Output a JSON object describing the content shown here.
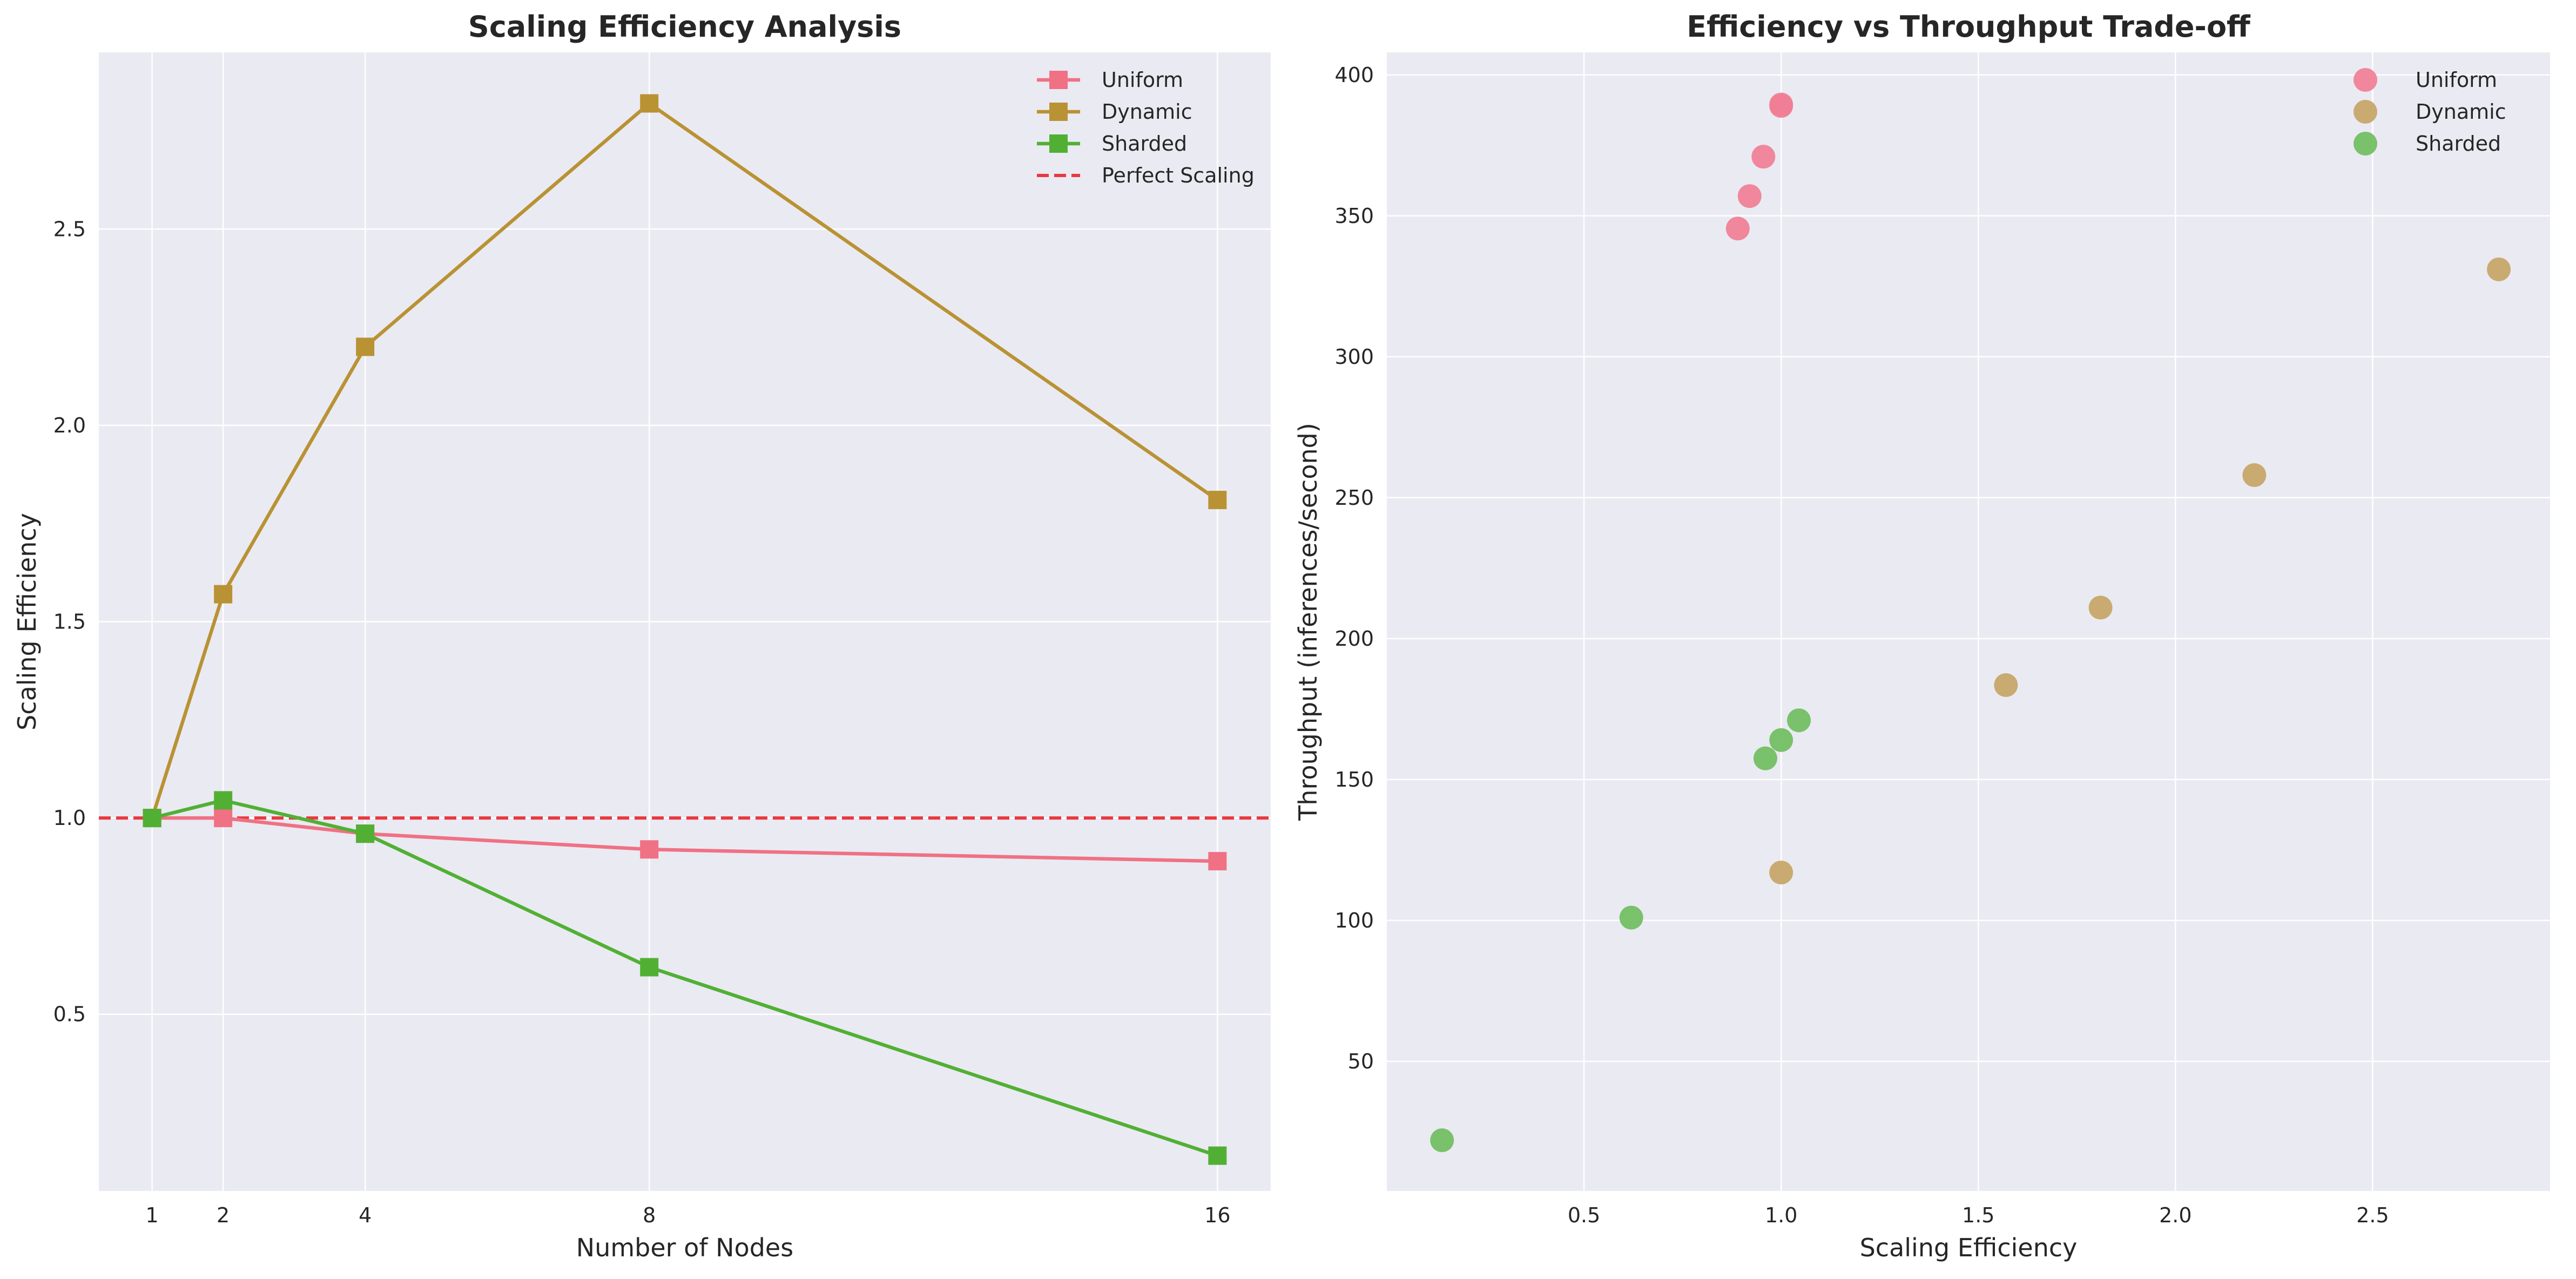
{
  "chart_data": [
    {
      "type": "line",
      "title": "Scaling Efficiency Analysis",
      "xlabel": "Number of Nodes",
      "ylabel": "Scaling Efficiency",
      "x": [
        1,
        2,
        4,
        8,
        16
      ],
      "xticks": [
        1,
        2,
        4,
        8,
        16
      ],
      "yticks": [
        0.5,
        1.0,
        1.5,
        2.0,
        2.5
      ],
      "xlim": [
        0.25,
        16.75
      ],
      "ylim": [
        0.05,
        2.95
      ],
      "grid": true,
      "legend_position": "top-right",
      "series": [
        {
          "name": "Uniform",
          "color": "#f07184",
          "marker": "square",
          "values": [
            1.0,
            1.0,
            0.96,
            0.92,
            0.89
          ]
        },
        {
          "name": "Dynamic",
          "color": "#b99234",
          "marker": "square",
          "values": [
            1.0,
            1.57,
            2.2,
            2.82,
            1.81
          ]
        },
        {
          "name": "Sharded",
          "color": "#51b034",
          "marker": "square",
          "values": [
            1.0,
            1.045,
            0.96,
            0.62,
            0.14
          ]
        }
      ],
      "reference_line": {
        "name": "Perfect Scaling",
        "y": 1.0,
        "color": "#e8393f",
        "style": "dashed"
      }
    },
    {
      "type": "scatter",
      "title": "Efficiency vs Throughput Trade-off",
      "xlabel": "Scaling Efficiency",
      "ylabel": "Throughput (inferences/second)",
      "xticks": [
        0.5,
        1.0,
        1.5,
        2.0,
        2.5
      ],
      "yticks": [
        50,
        100,
        150,
        200,
        250,
        300,
        350,
        400
      ],
      "xlim": [
        0.0,
        2.95
      ],
      "ylim": [
        4,
        408
      ],
      "grid": true,
      "legend_position": "top-right",
      "series": [
        {
          "name": "Uniform",
          "color": "#f07e95",
          "points": [
            [
              1.0,
              389
            ],
            [
              1.0,
              389.5
            ],
            [
              0.955,
              371
            ],
            [
              0.92,
              357
            ],
            [
              0.89,
              345.5
            ]
          ]
        },
        {
          "name": "Dynamic",
          "color": "#c5a466",
          "points": [
            [
              1.0,
              117
            ],
            [
              1.57,
              183.5
            ],
            [
              2.2,
              258
            ],
            [
              2.82,
              331
            ],
            [
              1.81,
              211
            ]
          ]
        },
        {
          "name": "Sharded",
          "color": "#6fbd5f",
          "points": [
            [
              1.0,
              164
            ],
            [
              1.045,
              171
            ],
            [
              0.96,
              157.5
            ],
            [
              0.62,
              101
            ],
            [
              0.14,
              22
            ]
          ]
        }
      ]
    }
  ]
}
